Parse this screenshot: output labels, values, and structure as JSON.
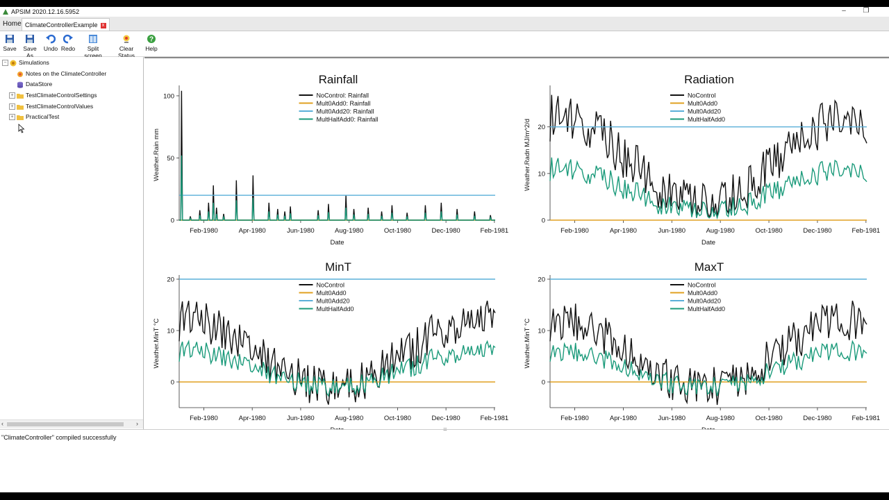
{
  "window": {
    "title": "APSIM 2020.12.16.5952"
  },
  "tabs": {
    "home": "Home",
    "active": "ClimateControllerExample"
  },
  "toolbar": {
    "save": "Save",
    "save_as": "Save As",
    "undo": "Undo",
    "redo": "Redo",
    "split_screen": "Split screen",
    "clear_status": "Clear Status",
    "help": "Help"
  },
  "tree": {
    "root": "Simulations",
    "items": [
      {
        "label": "Notes on the ClimateController",
        "icon": "note-icon"
      },
      {
        "label": "DataStore",
        "icon": "database-icon"
      },
      {
        "label": "TestClimateControlSettings",
        "icon": "folder-icon"
      },
      {
        "label": "TestClimateControlValues",
        "icon": "folder-icon"
      },
      {
        "label": "PracticalTest",
        "icon": "folder-icon"
      }
    ]
  },
  "status": {
    "message": "\"ClimateController\" compiled successfully"
  },
  "colors": {
    "nocontrol": "#111111",
    "mult0add0": "#e0a020",
    "mult0add20": "#5aafd8",
    "multhalf": "#1a9a7a"
  },
  "chart_data": [
    {
      "type": "line",
      "title": "Rainfall",
      "xlabel": "Date",
      "ylabel": "Weather.Rain mm",
      "x_ticks": [
        "Feb-1980",
        "Apr-1980",
        "Jun-1980",
        "Aug-1980",
        "Oct-1980",
        "Dec-1980",
        "Feb-1981"
      ],
      "y_ticks": [
        "0",
        "50",
        "100"
      ],
      "ylim": [
        0,
        105
      ],
      "legend": [
        "NoControl: Rainfall",
        "Mult0Add0: Rainfall",
        "Mult0Add20: Rainfall",
        "MultHalfAdd0: Rainfall"
      ],
      "legend_position": "top-center",
      "x": [
        "1980-01-01",
        "1981-01-31"
      ],
      "series": [
        {
          "name": "NoControl: Rainfall",
          "color": "#111111",
          "spikes": [
            [
              3,
              104
            ],
            [
              14,
              3
            ],
            [
              26,
              8
            ],
            [
              37,
              14
            ],
            [
              43,
              28
            ],
            [
              47,
              10
            ],
            [
              56,
              5
            ],
            [
              72,
              32
            ],
            [
              93,
              36
            ],
            [
              113,
              14
            ],
            [
              124,
              9
            ],
            [
              133,
              7
            ],
            [
              140,
              11
            ],
            [
              175,
              8
            ],
            [
              188,
              13
            ],
            [
              210,
              20
            ],
            [
              220,
              9
            ],
            [
              238,
              10
            ],
            [
              255,
              7
            ],
            [
              268,
              12
            ],
            [
              287,
              6
            ],
            [
              310,
              12
            ],
            [
              330,
              14
            ],
            [
              350,
              9
            ],
            [
              372,
              7
            ],
            [
              392,
              4
            ]
          ]
        },
        {
          "name": "Mult0Add0: Rainfall",
          "color": "#e0a020",
          "constant": 0
        },
        {
          "name": "Mult0Add20: Rainfall",
          "color": "#5aafd8",
          "constant": 20
        },
        {
          "name": "MultHalfAdd0: Rainfall",
          "color": "#1a9a7a",
          "spikes": [
            [
              3,
              52
            ],
            [
              14,
              1.5
            ],
            [
              26,
              4
            ],
            [
              37,
              7
            ],
            [
              43,
              14
            ],
            [
              47,
              5
            ],
            [
              56,
              2.5
            ],
            [
              72,
              16
            ],
            [
              93,
              18
            ],
            [
              113,
              7
            ],
            [
              124,
              4.5
            ],
            [
              133,
              3.5
            ],
            [
              140,
              5.5
            ],
            [
              175,
              4
            ],
            [
              188,
              6.5
            ],
            [
              210,
              10
            ],
            [
              220,
              4.5
            ],
            [
              238,
              5
            ],
            [
              255,
              3.5
            ],
            [
              268,
              6
            ],
            [
              287,
              3
            ],
            [
              310,
              6
            ],
            [
              330,
              7
            ],
            [
              350,
              4.5
            ],
            [
              372,
              3.5
            ],
            [
              392,
              2
            ]
          ]
        }
      ]
    },
    {
      "type": "line",
      "title": "Radiation",
      "xlabel": "Date",
      "ylabel": "Weather.Radn MJ/m^2/d",
      "x_ticks": [
        "Feb-1980",
        "Apr-1980",
        "Jun-1980",
        "Aug-1980",
        "Oct-1980",
        "Dec-1980",
        "Feb-1981"
      ],
      "y_ticks": [
        "0",
        "10",
        "20"
      ],
      "ylim": [
        0,
        28
      ],
      "legend": [
        "NoControl",
        "Mult0Add0",
        "Mult0Add20",
        "MultHalfAdd0"
      ],
      "legend_position": "top-center",
      "series": [
        {
          "name": "NoControl",
          "color": "#111111",
          "profile": "summer-high",
          "mean_range": [
            3,
            22
          ],
          "noise": 5
        },
        {
          "name": "Mult0Add0",
          "color": "#e0a020",
          "constant": 0
        },
        {
          "name": "Mult0Add20",
          "color": "#5aafd8",
          "constant": 20
        },
        {
          "name": "MultHalfAdd0",
          "color": "#1a9a7a",
          "profile": "summer-high",
          "mean_range": [
            1.5,
            11
          ],
          "noise": 2.5
        }
      ]
    },
    {
      "type": "line",
      "title": "MinT",
      "xlabel": "Date",
      "ylabel": "Weather.MinT °C",
      "x_ticks": [
        "Feb-1980",
        "Apr-1980",
        "Jun-1980",
        "Aug-1980",
        "Oct-1980",
        "Dec-1980",
        "Feb-1981"
      ],
      "y_ticks": [
        "0",
        "10",
        "20"
      ],
      "ylim": [
        -5,
        20
      ],
      "legend": [
        "NoControl",
        "Mult0Add0",
        "Mult0Add20",
        "MultHalfAdd0"
      ],
      "legend_position": "top-center",
      "series": [
        {
          "name": "NoControl",
          "color": "#111111",
          "profile": "summer-high",
          "mean_range": [
            -1,
            12
          ],
          "noise": 4
        },
        {
          "name": "Mult0Add0",
          "color": "#e0a020",
          "constant": 0
        },
        {
          "name": "Mult0Add20",
          "color": "#5aafd8",
          "constant": 20
        },
        {
          "name": "MultHalfAdd0",
          "color": "#1a9a7a",
          "profile": "summer-high",
          "mean_range": [
            -1,
            6
          ],
          "noise": 2
        }
      ]
    },
    {
      "type": "line",
      "title": "MaxT",
      "xlabel": "Date",
      "ylabel": "Weather.MinT °C",
      "x_ticks": [
        "Feb-1980",
        "Apr-1980",
        "Jun-1980",
        "Aug-1980",
        "Oct-1980",
        "Dec-1980",
        "Feb-1981"
      ],
      "y_ticks": [
        "0",
        "10",
        "20"
      ],
      "ylim": [
        -5,
        20
      ],
      "legend": [
        "NoControl",
        "Mult0Add0",
        "Mult0Add20",
        "MultHalfAdd0"
      ],
      "legend_position": "top-center",
      "series": [
        {
          "name": "NoControl",
          "color": "#111111",
          "profile": "summer-high",
          "mean_range": [
            -1,
            12
          ],
          "noise": 4
        },
        {
          "name": "Mult0Add0",
          "color": "#e0a020",
          "constant": 0
        },
        {
          "name": "Mult0Add20",
          "color": "#5aafd8",
          "constant": 20
        },
        {
          "name": "MultHalfAdd0",
          "color": "#1a9a7a",
          "profile": "summer-high",
          "mean_range": [
            -1,
            6
          ],
          "noise": 2
        }
      ]
    }
  ]
}
